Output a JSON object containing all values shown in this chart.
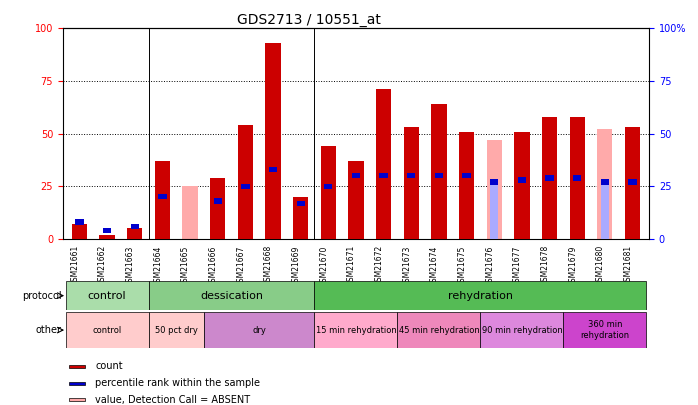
{
  "title": "GDS2713 / 10551_at",
  "samples": [
    "GSM21661",
    "GSM21662",
    "GSM21663",
    "GSM21664",
    "GSM21665",
    "GSM21666",
    "GSM21667",
    "GSM21668",
    "GSM21669",
    "GSM21670",
    "GSM21671",
    "GSM21672",
    "GSM21673",
    "GSM21674",
    "GSM21675",
    "GSM21676",
    "GSM21677",
    "GSM21678",
    "GSM21679",
    "GSM21680",
    "GSM21681"
  ],
  "count_values": [
    7,
    2,
    5,
    37,
    0,
    29,
    54,
    93,
    20,
    44,
    37,
    71,
    53,
    64,
    51,
    0,
    51,
    58,
    58,
    0,
    53
  ],
  "rank_values": [
    8,
    4,
    6,
    20,
    0,
    18,
    25,
    33,
    17,
    25,
    30,
    30,
    30,
    30,
    30,
    27,
    28,
    29,
    29,
    27,
    27
  ],
  "absent_value": [
    0,
    0,
    0,
    0,
    25,
    0,
    0,
    0,
    0,
    0,
    0,
    0,
    0,
    0,
    0,
    47,
    0,
    0,
    0,
    52,
    0
  ],
  "absent_rank": [
    0,
    0,
    0,
    0,
    0,
    0,
    0,
    0,
    0,
    0,
    0,
    0,
    0,
    0,
    0,
    27,
    0,
    0,
    0,
    28,
    0
  ],
  "protocol_groups": [
    {
      "label": "control",
      "start": 0,
      "end": 3,
      "color": "#aaddaa"
    },
    {
      "label": "dessication",
      "start": 3,
      "end": 9,
      "color": "#88cc88"
    },
    {
      "label": "rehydration",
      "start": 9,
      "end": 21,
      "color": "#55bb55"
    }
  ],
  "other_groups": [
    {
      "label": "control",
      "start": 0,
      "end": 3,
      "color": "#ffcccc"
    },
    {
      "label": "50 pct dry",
      "start": 3,
      "end": 5,
      "color": "#ffcccc"
    },
    {
      "label": "dry",
      "start": 5,
      "end": 9,
      "color": "#cc88cc"
    },
    {
      "label": "15 min rehydration",
      "start": 9,
      "end": 12,
      "color": "#ffaacc"
    },
    {
      "label": "45 min rehydration",
      "start": 12,
      "end": 15,
      "color": "#ee88bb"
    },
    {
      "label": "90 min rehydration",
      "start": 15,
      "end": 18,
      "color": "#dd88dd"
    },
    {
      "label": "360 min\nrehydration",
      "start": 18,
      "end": 21,
      "color": "#cc44cc"
    }
  ],
  "count_color": "#cc0000",
  "rank_color": "#0000cc",
  "absent_value_color": "#ffaaaa",
  "absent_rank_color": "#aaaaff",
  "bar_width": 0.55,
  "rank_bar_width": 0.3,
  "rank_bar_height": 2.5
}
